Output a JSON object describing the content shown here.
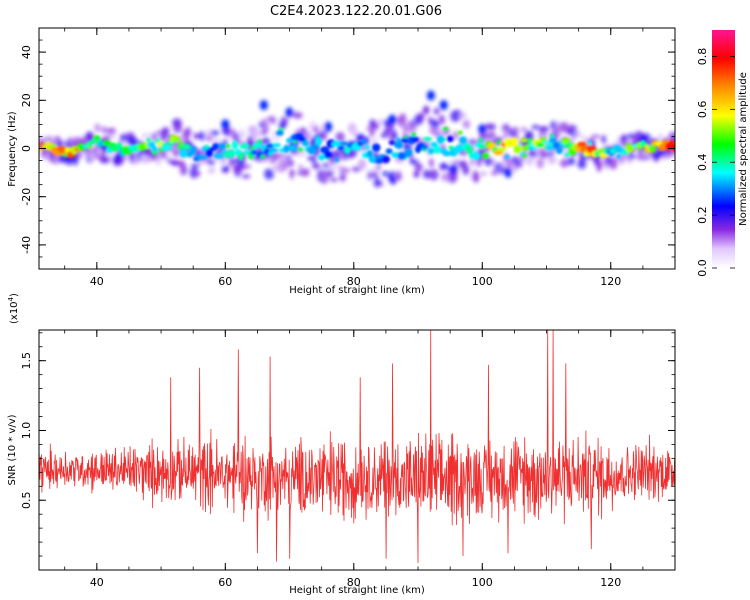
{
  "figure": {
    "title": "C2E4.2023.122.20.01.G06"
  },
  "chart_data": [
    {
      "type": "heatmap",
      "title": "C2E4.2023.122.20.01.G06",
      "xlabel": "Height of straight line (km)",
      "ylabel": "Frequency (Hz)",
      "xlim": [
        31,
        130
      ],
      "ylim": [
        -50,
        50
      ],
      "x_ticks": [
        40,
        60,
        80,
        100,
        120
      ],
      "y_ticks": [
        -40,
        -20,
        0,
        20,
        40
      ],
      "x_tick_labels": [
        "40",
        "60",
        "80",
        "100",
        "120"
      ],
      "y_tick_labels": [
        "-40",
        "-20",
        "0",
        "20",
        "40"
      ],
      "colorbar": {
        "label": "Normalized spectral amplitude",
        "range": [
          0,
          0.9
        ],
        "ticks": [
          0,
          0.2,
          0.4,
          0.6,
          0.8
        ],
        "tick_labels": [
          "0.0",
          "0.2",
          "0.4",
          "0.6",
          "0.8"
        ],
        "colors": [
          "#ffffff",
          "#e2c8ff",
          "#8a2be2",
          "#0000ff",
          "#00ffff",
          "#00ff00",
          "#ffff00",
          "#ff8c00",
          "#ff0000",
          "#ff1493"
        ]
      },
      "ridge": {
        "note": "dominant spectral band near 0 Hz",
        "x": [
          32,
          36,
          40,
          44,
          48,
          52,
          56,
          60,
          64,
          68,
          72,
          76,
          80,
          84,
          88,
          92,
          96,
          100,
          104,
          108,
          112,
          116,
          120,
          124,
          128
        ],
        "y": [
          1,
          -2,
          3,
          -1,
          1,
          2,
          -3,
          0,
          -1,
          3,
          2,
          -1,
          1,
          -2,
          0,
          2,
          1,
          -1,
          0,
          2,
          1,
          0,
          -2,
          1,
          1
        ],
        "half_width_hz": [
          2,
          2,
          3,
          3,
          3,
          4,
          4,
          4,
          5,
          6,
          6,
          6,
          5,
          6,
          6,
          7,
          6,
          5,
          4,
          4,
          4,
          3,
          3,
          2,
          2
        ],
        "peak_amplitude": [
          0.85,
          0.8,
          0.5,
          0.45,
          0.55,
          0.6,
          0.35,
          0.4,
          0.45,
          0.35,
          0.4,
          0.35,
          0.4,
          0.35,
          0.35,
          0.4,
          0.35,
          0.5,
          0.85,
          0.6,
          0.45,
          0.85,
          0.5,
          0.55,
          0.85
        ]
      },
      "outliers": [
        [
          66,
          18
        ],
        [
          70,
          15
        ],
        [
          76,
          9
        ],
        [
          86,
          12
        ],
        [
          92,
          22
        ],
        [
          94,
          18
        ],
        [
          100,
          8
        ],
        [
          104,
          -10
        ],
        [
          60,
          10
        ]
      ]
    },
    {
      "type": "line",
      "xlabel": "Height of straight line (km)",
      "ylabel": "SNR (10 * v/v)",
      "y_multiplier": "(x10^4)",
      "xlim": [
        31,
        130
      ],
      "ylim": [
        0,
        1.72
      ],
      "x_ticks": [
        40,
        60,
        80,
        100,
        120
      ],
      "y_ticks": [
        0.5,
        1.0,
        1.5
      ],
      "x_tick_labels": [
        "40",
        "60",
        "80",
        "100",
        "120"
      ],
      "y_tick_labels": [
        "0.5",
        "1.0",
        "1.5"
      ],
      "color": "#f03030",
      "envelope": {
        "x": [
          31,
          40,
          50,
          55,
          60,
          65,
          70,
          75,
          80,
          85,
          90,
          95,
          100,
          105,
          110,
          115,
          120,
          125,
          130
        ],
        "mean": [
          0.72,
          0.72,
          0.7,
          0.7,
          0.68,
          0.68,
          0.65,
          0.66,
          0.65,
          0.66,
          0.65,
          0.66,
          0.66,
          0.68,
          0.66,
          0.68,
          0.68,
          0.7,
          0.7
        ],
        "amp": [
          0.3,
          0.3,
          0.45,
          0.5,
          0.55,
          0.6,
          0.6,
          0.65,
          0.6,
          0.6,
          0.65,
          0.62,
          0.6,
          0.6,
          0.65,
          0.6,
          0.55,
          0.45,
          0.4
        ]
      },
      "peaks": [
        [
          51.5,
          1.38
        ],
        [
          56,
          1.45
        ],
        [
          62,
          1.58
        ],
        [
          67,
          1.53
        ],
        [
          81,
          1.38
        ],
        [
          86,
          1.48
        ],
        [
          92,
          1.72
        ],
        [
          101,
          1.47
        ],
        [
          110.2,
          1.72
        ],
        [
          111,
          1.72
        ],
        [
          113,
          1.48
        ]
      ],
      "troughs": [
        [
          65,
          0.12
        ],
        [
          68,
          0.06
        ],
        [
          70,
          0.08
        ],
        [
          85,
          0.08
        ],
        [
          90,
          0.05
        ],
        [
          97,
          0.1
        ],
        [
          104,
          0.12
        ],
        [
          117,
          0.15
        ]
      ]
    }
  ]
}
